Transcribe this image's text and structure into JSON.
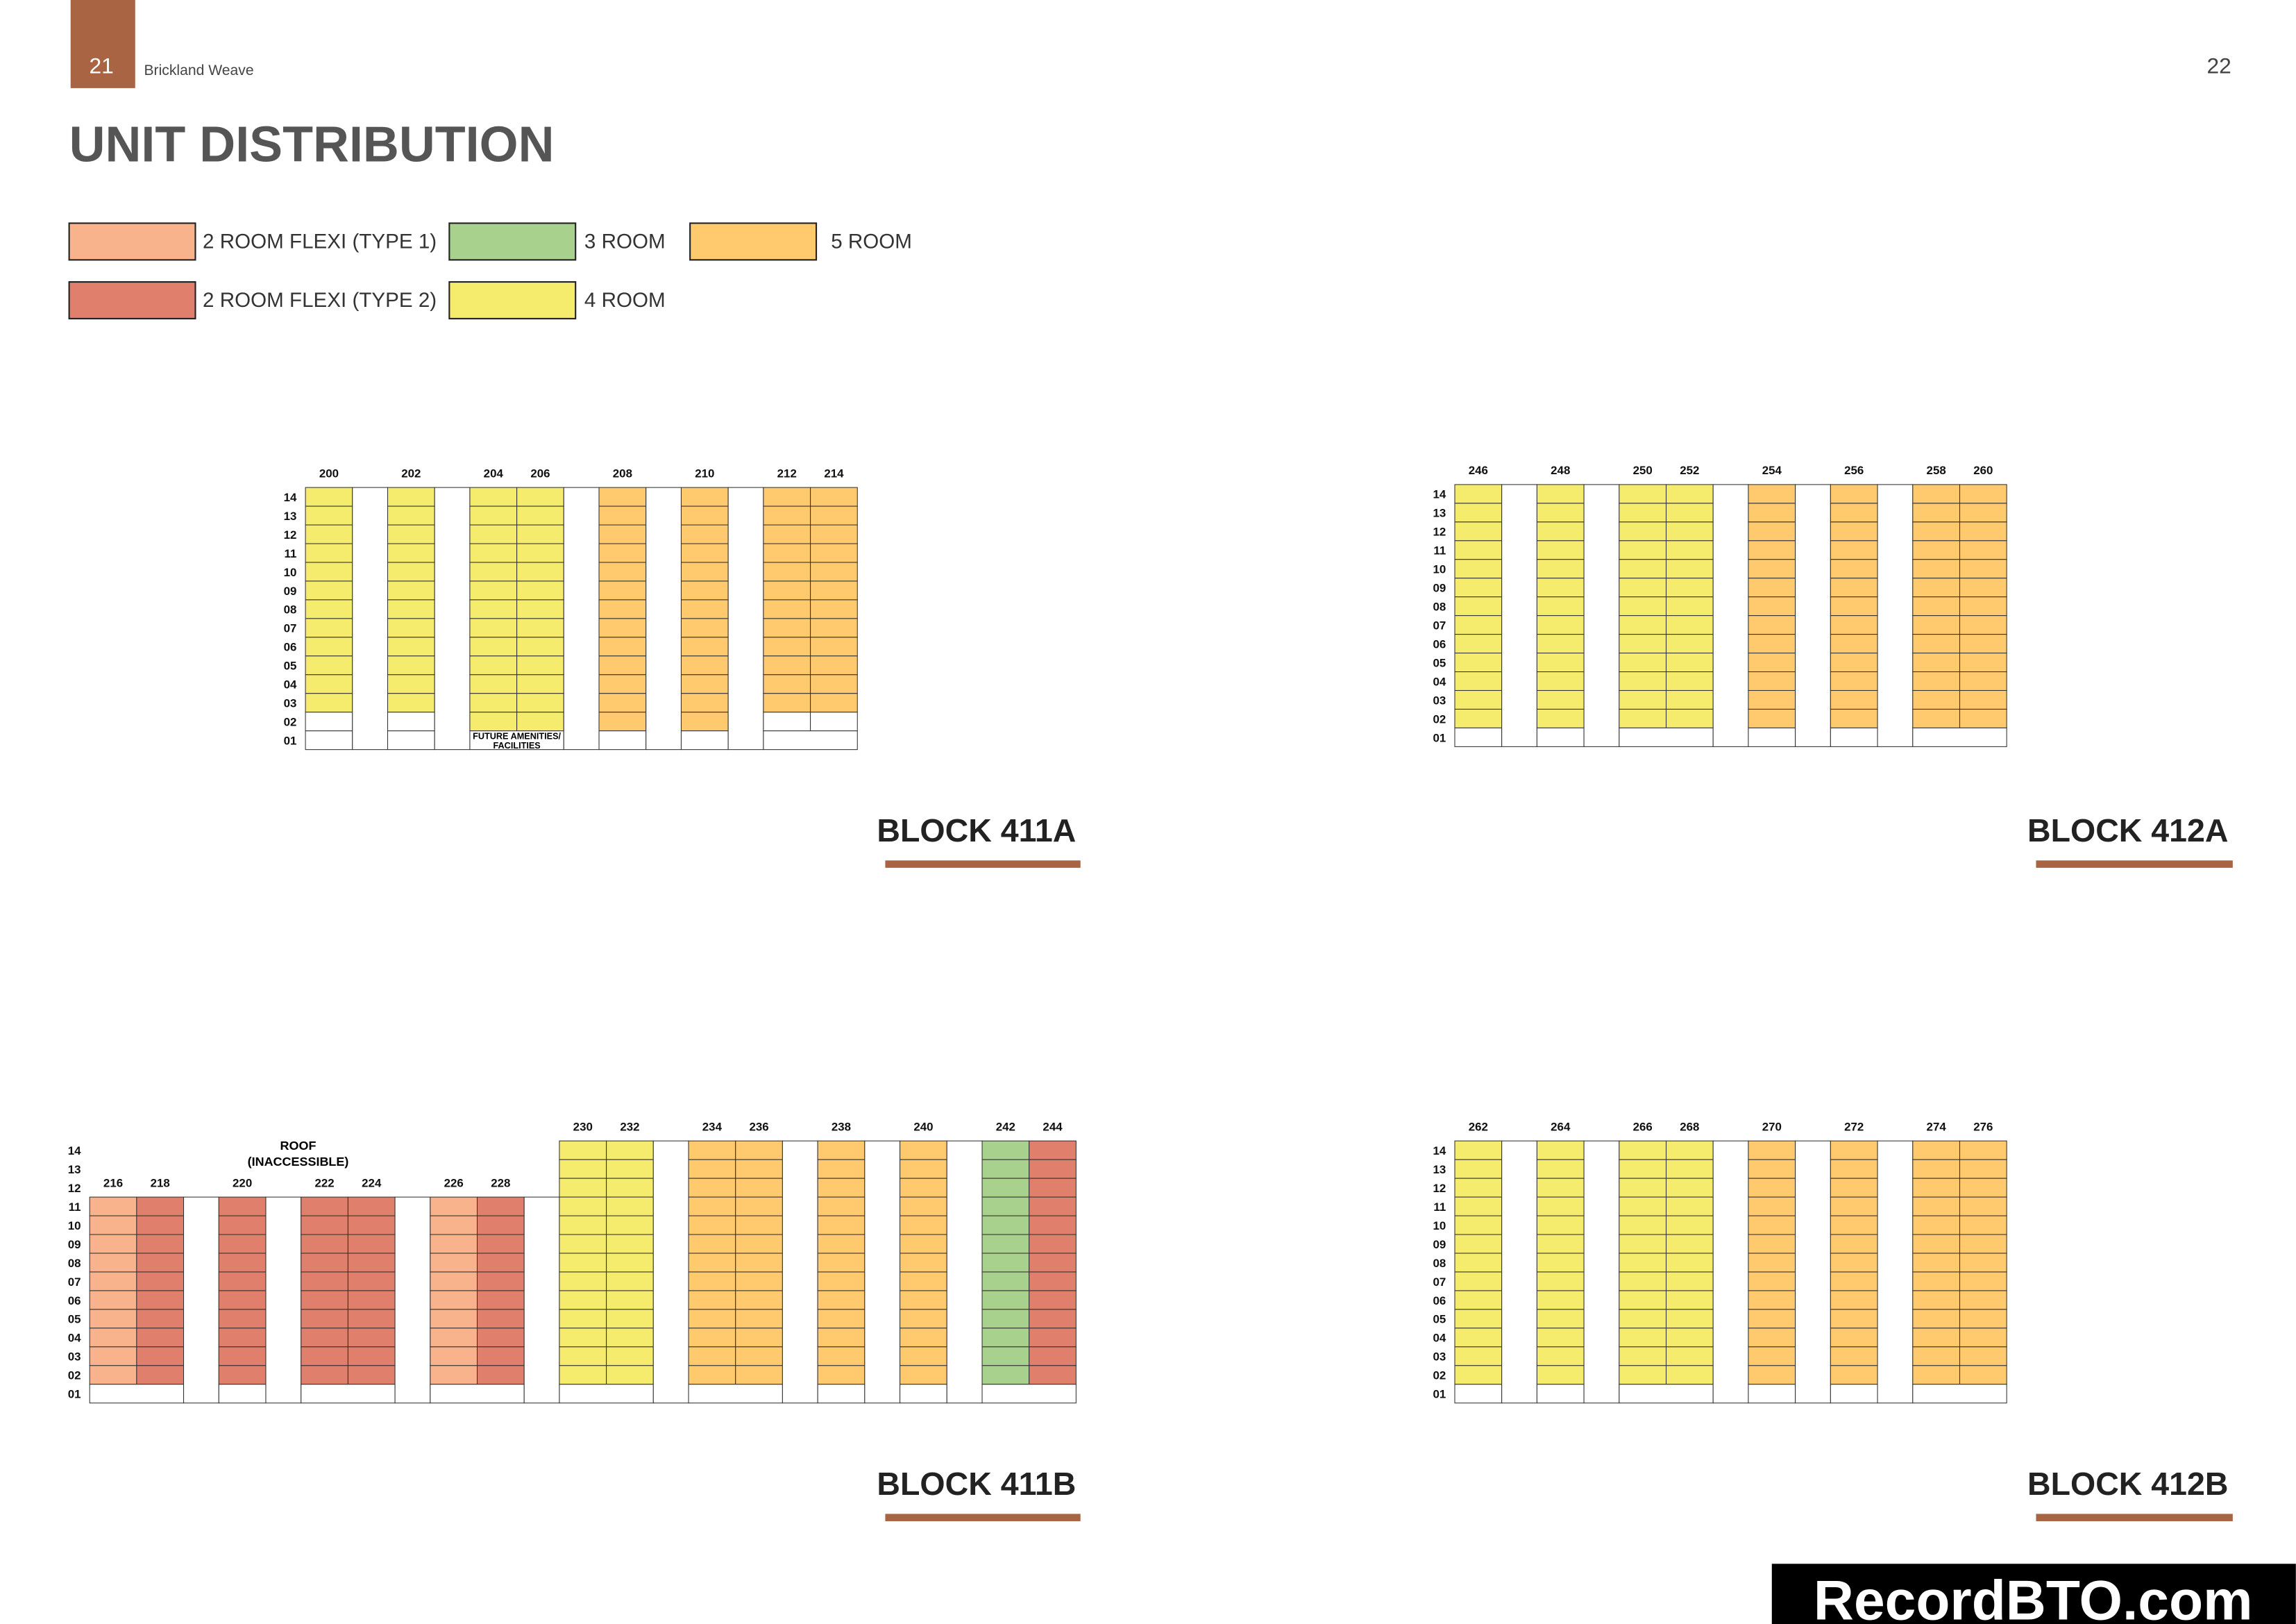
{
  "header": {
    "page_left": "21",
    "brand": "Brickland Weave",
    "page_right": "22"
  },
  "title": "UNIT DISTRIBUTION",
  "legend": [
    {
      "label": "2 ROOM FLEXI (TYPE 1)",
      "color": "#f9b38c"
    },
    {
      "label": "2 ROOM FLEXI (TYPE 2)",
      "color": "#e07f6b"
    },
    {
      "label": "3 ROOM",
      "color": "#a8d18d"
    },
    {
      "label": "4 ROOM",
      "color": "#f5ec6e"
    },
    {
      "label": "5 ROOM",
      "color": "#ffc96e"
    }
  ],
  "floors": [
    "14",
    "13",
    "12",
    "11",
    "10",
    "09",
    "08",
    "07",
    "06",
    "05",
    "04",
    "03",
    "02",
    "01"
  ],
  "blocks": [
    {
      "name": "BLOCK 411A",
      "groups": [
        {
          "units": [
            {
              "unit": "200",
              "color": "#f5ec6e",
              "from": "03",
              "to": "14"
            }
          ]
        },
        {
          "units": [
            {
              "unit": "202",
              "color": "#f5ec6e",
              "from": "03",
              "to": "14"
            }
          ]
        },
        {
          "units": [
            {
              "unit": "204",
              "color": "#f5ec6e",
              "from": "02",
              "to": "14"
            },
            {
              "unit": "206",
              "color": "#f5ec6e",
              "from": "02",
              "to": "14"
            }
          ],
          "note": [
            "FUTURE AMENITIES/",
            "FACILITIES"
          ]
        },
        {
          "units": [
            {
              "unit": "208",
              "color": "#ffc96e",
              "from": "02",
              "to": "14"
            }
          ]
        },
        {
          "units": [
            {
              "unit": "210",
              "color": "#ffc96e",
              "from": "02",
              "to": "14"
            }
          ]
        },
        {
          "units": [
            {
              "unit": "212",
              "color": "#ffc96e",
              "from": "03",
              "to": "14"
            },
            {
              "unit": "214",
              "color": "#ffc96e",
              "from": "03",
              "to": "14"
            }
          ]
        }
      ]
    },
    {
      "name": "BLOCK 412A",
      "groups": [
        {
          "units": [
            {
              "unit": "246",
              "color": "#f5ec6e",
              "from": "02",
              "to": "14"
            }
          ]
        },
        {
          "units": [
            {
              "unit": "248",
              "color": "#f5ec6e",
              "from": "02",
              "to": "14"
            }
          ]
        },
        {
          "units": [
            {
              "unit": "250",
              "color": "#f5ec6e",
              "from": "02",
              "to": "14"
            },
            {
              "unit": "252",
              "color": "#f5ec6e",
              "from": "02",
              "to": "14"
            }
          ]
        },
        {
          "units": [
            {
              "unit": "254",
              "color": "#ffc96e",
              "from": "02",
              "to": "14"
            }
          ]
        },
        {
          "units": [
            {
              "unit": "256",
              "color": "#ffc96e",
              "from": "02",
              "to": "14"
            }
          ]
        },
        {
          "units": [
            {
              "unit": "258",
              "color": "#ffc96e",
              "from": "02",
              "to": "14"
            },
            {
              "unit": "260",
              "color": "#ffc96e",
              "from": "02",
              "to": "14"
            }
          ]
        }
      ]
    },
    {
      "name": "BLOCK 411B",
      "annotation": [
        "ROOF",
        "(INACCESSIBLE)"
      ],
      "groups": [
        {
          "units": [
            {
              "unit": "216",
              "color": "#f9b38c",
              "from": "02",
              "to": "11"
            },
            {
              "unit": "218",
              "color": "#e07f6b",
              "from": "02",
              "to": "11"
            }
          ]
        },
        {
          "units": [
            {
              "unit": "220",
              "color": "#e07f6b",
              "from": "02",
              "to": "11"
            }
          ]
        },
        {
          "units": [
            {
              "unit": "222",
              "color": "#e07f6b",
              "from": "02",
              "to": "11"
            },
            {
              "unit": "224",
              "color": "#e07f6b",
              "from": "02",
              "to": "11"
            }
          ]
        },
        {
          "units": [
            {
              "unit": "226",
              "color": "#f9b38c",
              "from": "02",
              "to": "11"
            },
            {
              "unit": "228",
              "color": "#e07f6b",
              "from": "02",
              "to": "11"
            }
          ]
        },
        {
          "units": [
            {
              "unit": "230",
              "color": "#f5ec6e",
              "from": "02",
              "to": "14"
            },
            {
              "unit": "232",
              "color": "#f5ec6e",
              "from": "02",
              "to": "14"
            }
          ]
        },
        {
          "units": [
            {
              "unit": "234",
              "color": "#ffc96e",
              "from": "02",
              "to": "14"
            },
            {
              "unit": "236",
              "color": "#ffc96e",
              "from": "02",
              "to": "14"
            }
          ]
        },
        {
          "units": [
            {
              "unit": "238",
              "color": "#ffc96e",
              "from": "02",
              "to": "14"
            }
          ]
        },
        {
          "units": [
            {
              "unit": "240",
              "color": "#ffc96e",
              "from": "02",
              "to": "14"
            }
          ]
        },
        {
          "units": [
            {
              "unit": "242",
              "color": "#a8d18d",
              "from": "02",
              "to": "14"
            },
            {
              "unit": "244",
              "color": "#e07f6b",
              "from": "02",
              "to": "14"
            }
          ]
        }
      ]
    },
    {
      "name": "BLOCK 412B",
      "groups": [
        {
          "units": [
            {
              "unit": "262",
              "color": "#f5ec6e",
              "from": "02",
              "to": "14"
            }
          ]
        },
        {
          "units": [
            {
              "unit": "264",
              "color": "#f5ec6e",
              "from": "02",
              "to": "14"
            }
          ]
        },
        {
          "units": [
            {
              "unit": "266",
              "color": "#f5ec6e",
              "from": "02",
              "to": "14"
            },
            {
              "unit": "268",
              "color": "#f5ec6e",
              "from": "02",
              "to": "14"
            }
          ]
        },
        {
          "units": [
            {
              "unit": "270",
              "color": "#ffc96e",
              "from": "02",
              "to": "14"
            }
          ]
        },
        {
          "units": [
            {
              "unit": "272",
              "color": "#ffc96e",
              "from": "02",
              "to": "14"
            }
          ]
        },
        {
          "units": [
            {
              "unit": "274",
              "color": "#ffc96e",
              "from": "02",
              "to": "14"
            },
            {
              "unit": "276",
              "color": "#ffc96e",
              "from": "02",
              "to": "14"
            }
          ]
        }
      ]
    }
  ],
  "watermark": "RecordBTO.com"
}
